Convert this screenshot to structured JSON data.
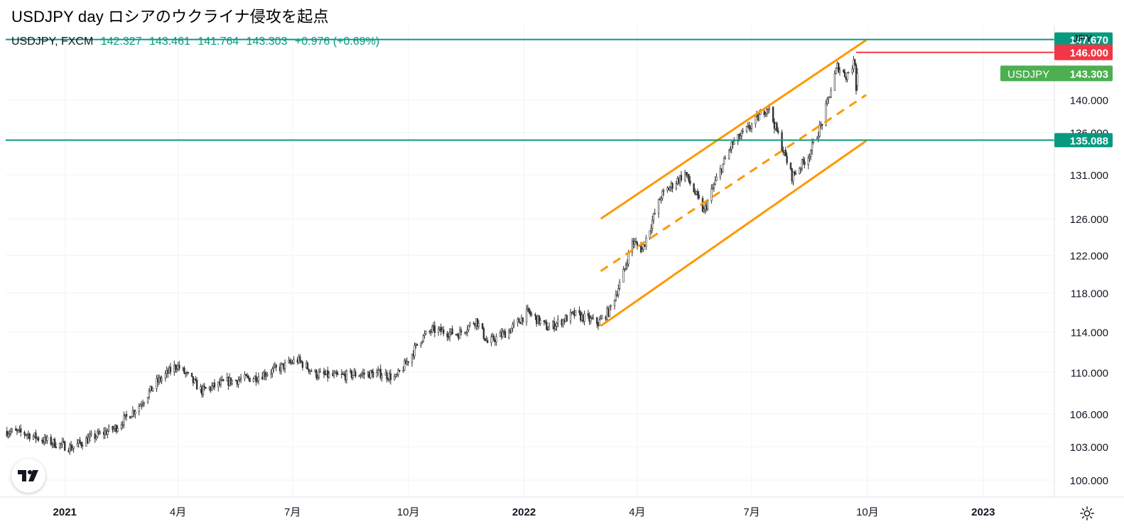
{
  "header": {
    "title": "USDJPY day ロシアのウクライナ侵攻を起点",
    "symbol": "USDJPY, FXCM",
    "open": "142.327",
    "high": "143.461",
    "low": "141.764",
    "close": "143.303",
    "change": "+0.976 (+0.69%)",
    "currency": "JPY"
  },
  "icons": {
    "logo": "tradingview-logo-icon",
    "settings": "gear-icon",
    "currency_menu": "chevron-down-icon"
  },
  "colors": {
    "up": "#089981",
    "hline": "#089981",
    "channel": "#ff9800",
    "resistance": "#f23645",
    "price_badge": "#4caf50",
    "candles": "#333333"
  },
  "chart_data": {
    "type": "candlestick",
    "symbol": "USDJPY",
    "interval": "day",
    "scale": "log",
    "y_range": [
      98.5,
      149.5
    ],
    "x_range": [
      "2020-11-15",
      "2023-02-26"
    ],
    "y_ticks": [
      "100.000",
      "103.000",
      "106.000",
      "110.000",
      "114.000",
      "118.000",
      "122.000",
      "126.000",
      "131.000",
      "136.000",
      "140.000",
      "147.670"
    ],
    "x_ticks": [
      {
        "date": "2021-01-01",
        "label": "2021",
        "bold": true
      },
      {
        "date": "2021-04-01",
        "label": "4月"
      },
      {
        "date": "2021-07-01",
        "label": "7月"
      },
      {
        "date": "2021-10-01",
        "label": "10月"
      },
      {
        "date": "2022-01-01",
        "label": "2022",
        "bold": true
      },
      {
        "date": "2022-04-01",
        "label": "4月"
      },
      {
        "date": "2022-07-01",
        "label": "7月"
      },
      {
        "date": "2022-10-01",
        "label": "10月"
      },
      {
        "date": "2023-01-01",
        "label": "2023",
        "bold": true
      }
    ],
    "price_path": [
      [
        "2020-11-16",
        104.4
      ],
      [
        "2020-12-01",
        104.2
      ],
      [
        "2020-12-15",
        103.6
      ],
      [
        "2021-01-06",
        102.9
      ],
      [
        "2021-01-20",
        103.7
      ],
      [
        "2021-02-10",
        104.7
      ],
      [
        "2021-03-01",
        106.8
      ],
      [
        "2021-03-15",
        109.0
      ],
      [
        "2021-03-31",
        110.7
      ],
      [
        "2021-04-20",
        108.2
      ],
      [
        "2021-05-10",
        109.1
      ],
      [
        "2021-06-01",
        109.5
      ],
      [
        "2021-06-20",
        110.4
      ],
      [
        "2021-07-05",
        111.2
      ],
      [
        "2021-07-20",
        109.8
      ],
      [
        "2021-08-05",
        109.6
      ],
      [
        "2021-08-20",
        109.8
      ],
      [
        "2021-09-10",
        109.9
      ],
      [
        "2021-09-21",
        109.4
      ],
      [
        "2021-10-01",
        111.2
      ],
      [
        "2021-10-11",
        113.3
      ],
      [
        "2021-10-20",
        114.2
      ],
      [
        "2021-11-10",
        113.8
      ],
      [
        "2021-11-24",
        115.2
      ],
      [
        "2021-12-03",
        112.9
      ],
      [
        "2021-12-20",
        114.1
      ],
      [
        "2022-01-04",
        116.0
      ],
      [
        "2022-01-20",
        114.4
      ],
      [
        "2022-02-10",
        115.8
      ],
      [
        "2022-03-01",
        114.9
      ],
      [
        "2022-03-10",
        116.2
      ],
      [
        "2022-03-20",
        119.6
      ],
      [
        "2022-03-28",
        123.5
      ],
      [
        "2022-04-05",
        122.6
      ],
      [
        "2022-04-20",
        128.6
      ],
      [
        "2022-05-09",
        131.2
      ],
      [
        "2022-05-24",
        126.8
      ],
      [
        "2022-06-01",
        129.8
      ],
      [
        "2022-06-15",
        134.5
      ],
      [
        "2022-06-29",
        136.6
      ],
      [
        "2022-07-14",
        139.2
      ],
      [
        "2022-08-02",
        130.8
      ],
      [
        "2022-08-15",
        133.2
      ],
      [
        "2022-08-26",
        137.2
      ],
      [
        "2022-09-07",
        144.2
      ],
      [
        "2022-09-14",
        143.0
      ],
      [
        "2022-09-21",
        144.8
      ],
      [
        "2022-09-22",
        141.5
      ],
      [
        "2022-09-23",
        143.3
      ]
    ],
    "horizontal_lines": [
      {
        "price": 147.67,
        "label": "147.670",
        "color": "#089981"
      },
      {
        "price": 135.088,
        "label": "135.088",
        "color": "#089981"
      }
    ],
    "resistance_line": {
      "price": 146.0,
      "label": "146.000",
      "start": "2022-09-22",
      "color": "#f23645"
    },
    "last_price": {
      "symbol": "USDJPY",
      "price": 143.303,
      "label": "143.303"
    },
    "channel": {
      "color": "#ff9800",
      "upper": [
        [
          "2022-03-03",
          126.0
        ],
        [
          "2022-09-30",
          147.6
        ]
      ],
      "middle": [
        [
          "2022-03-03",
          120.3
        ],
        [
          "2022-09-30",
          140.6
        ]
      ],
      "lower": [
        [
          "2022-03-03",
          114.6
        ],
        [
          "2022-09-30",
          135.0
        ]
      ]
    }
  }
}
